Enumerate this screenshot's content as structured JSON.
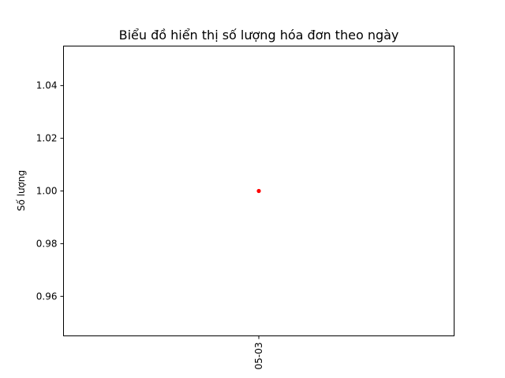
{
  "chart_data": {
    "type": "scatter",
    "title": "Biểu đồ hiển thị số lượng hóa đơn theo ngày",
    "xlabel": "",
    "ylabel": "Số lượng",
    "x_categories": [
      "05-03"
    ],
    "points": [
      {
        "x": "05-03",
        "y": 1.0
      }
    ],
    "ylim": [
      0.945,
      1.055
    ],
    "yticks": [
      0.96,
      0.98,
      1.0,
      1.02,
      1.04
    ],
    "ytick_labels": [
      "0.96",
      "0.98",
      "1.00",
      "1.02",
      "1.04"
    ],
    "grid": false,
    "point_color": "#ff0000"
  }
}
